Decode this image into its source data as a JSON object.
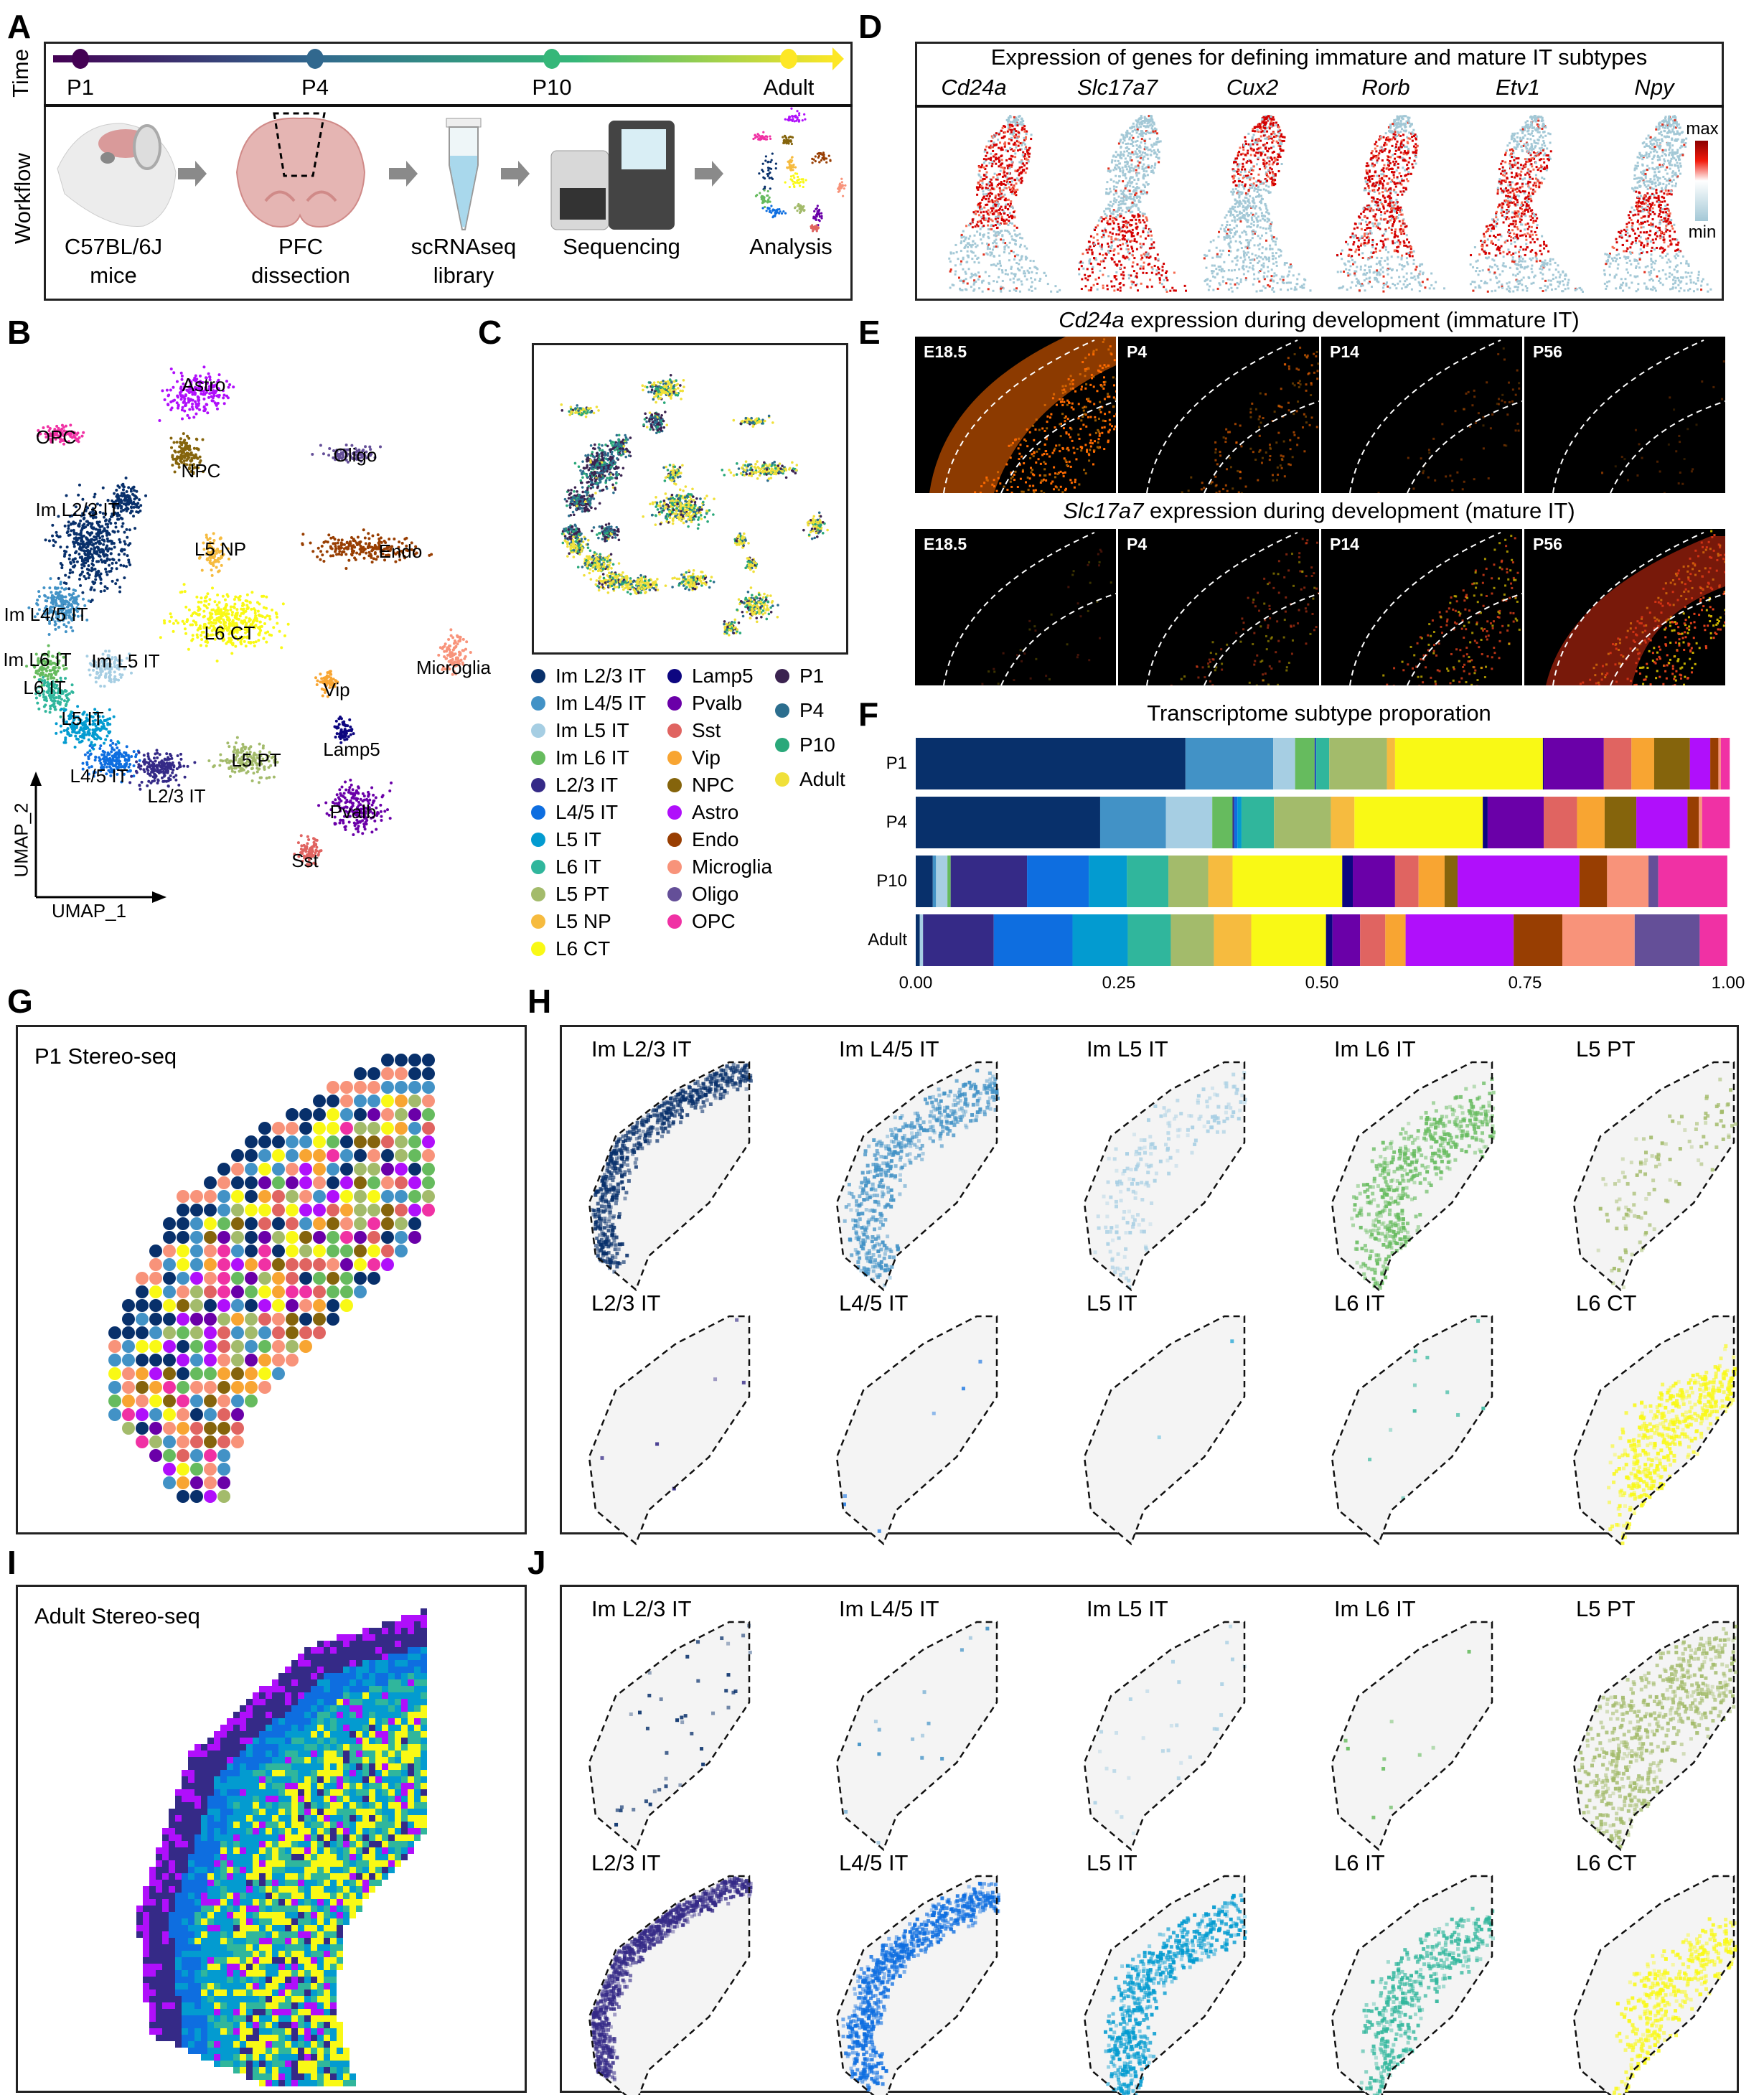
{
  "panel_labels": {
    "A": "A",
    "B": "B",
    "C": "C",
    "D": "D",
    "E": "E",
    "F": "F",
    "G": "G",
    "H": "H",
    "I": "I",
    "J": "J"
  },
  "panel_a": {
    "time_label": "Time",
    "workflow_label": "Workflow",
    "timepoints": [
      "P1",
      "P4",
      "P10",
      "Adult"
    ],
    "timeline_colors": [
      "#440154",
      "#31688e",
      "#35b779",
      "#fde725"
    ],
    "steps": [
      {
        "line1": "C57BL/6J",
        "line2": "mice",
        "icon": "mouse-icon"
      },
      {
        "line1": "PFC",
        "line2": "dissection",
        "icon": "brain-section-icon"
      },
      {
        "line1": "scRNAseq",
        "line2": "library",
        "icon": "tube-icon"
      },
      {
        "line1": "Sequencing",
        "line2": "",
        "icon": "sequencer-icon"
      },
      {
        "line1": "Analysis",
        "line2": "",
        "icon": "umap-icon"
      }
    ]
  },
  "panel_b": {
    "cluster_labels": [
      "Astro",
      "OPC",
      "NPC",
      "Oligo",
      "Im L2/3 IT",
      "L5 NP",
      "Endo",
      "Im L4/5 IT",
      "L6 CT",
      "Microglia",
      "Im L6 IT",
      "Im L5 IT",
      "L6 IT",
      "Vip",
      "L5 IT",
      "Lamp5",
      "L5 PT",
      "L4/5 IT",
      "L2/3 IT",
      "Pvalb",
      "Sst"
    ],
    "x_axis": "UMAP_1",
    "y_axis": "UMAP_2"
  },
  "cell_types": [
    {
      "name": "Im L2/3 IT",
      "color": "#08306b"
    },
    {
      "name": "Im L4/5 IT",
      "color": "#4292c6"
    },
    {
      "name": "Im L5 IT",
      "color": "#a6cee3"
    },
    {
      "name": "Im L6 IT",
      "color": "#66bb5e"
    },
    {
      "name": "L2/3 IT",
      "color": "#352a87"
    },
    {
      "name": "L4/5 IT",
      "color": "#0e6ee0"
    },
    {
      "name": "L5 IT",
      "color": "#039bd0"
    },
    {
      "name": "L6 IT",
      "color": "#30b69c"
    },
    {
      "name": "L5 PT",
      "color": "#a3bb6b"
    },
    {
      "name": "L5 NP",
      "color": "#f6bb3f"
    },
    {
      "name": "L6 CT",
      "color": "#f9f915"
    },
    {
      "name": "Lamp5",
      "color": "#0d0680"
    },
    {
      "name": "Pvalb",
      "color": "#6a00a8"
    },
    {
      "name": "Sst",
      "color": "#e06461"
    },
    {
      "name": "Vip",
      "color": "#f8a532"
    },
    {
      "name": "NPC",
      "color": "#85640c"
    },
    {
      "name": "Astro",
      "color": "#b00ffb"
    },
    {
      "name": "Endo",
      "color": "#983e02"
    },
    {
      "name": "Microglia",
      "color": "#f8937a"
    },
    {
      "name": "Oligo",
      "color": "#644f98"
    },
    {
      "name": "OPC",
      "color": "#f031a4"
    }
  ],
  "time_legend": [
    {
      "name": "P1",
      "color": "#3b2350"
    },
    {
      "name": "P4",
      "color": "#2c6e8e"
    },
    {
      "name": "P10",
      "color": "#2aa87a"
    },
    {
      "name": "Adult",
      "color": "#f0e03a"
    }
  ],
  "panel_d": {
    "title": "Expression of genes for defining immature and mature IT subtypes",
    "genes": [
      "Cd24a",
      "Slc17a7",
      "Cux2",
      "Rorb",
      "Etv1",
      "Npy"
    ],
    "scale_max": "max",
    "scale_min": "min",
    "scale_colors": [
      "#a3c8d6",
      "#ffffff",
      "#f21a0c",
      "#8b0000"
    ]
  },
  "panel_e": {
    "row1_gene": "Cd24a",
    "row1_suffix": " expression during development (immature IT)",
    "row2_gene": "Slc17a7",
    "row2_suffix": " expression during development (mature IT)",
    "stages": [
      "E18.5",
      "P4",
      "P14",
      "P56"
    ]
  },
  "chart_data": {
    "type": "bar",
    "orientation": "horizontal-stacked",
    "title": "Transcriptome subtype proporation",
    "categories": [
      "P1",
      "P4",
      "P10",
      "Adult"
    ],
    "xlim": [
      0,
      1
    ],
    "xticks": [
      "0.00",
      "0.25",
      "0.50",
      "0.75",
      "1.00"
    ],
    "grid": false,
    "series": [
      {
        "name": "Im L2/3 IT",
        "values": [
          0.332,
          0.227,
          0.021,
          0.005
        ]
      },
      {
        "name": "Im L4/5 IT",
        "values": [
          0.108,
          0.081,
          0.004,
          0.0
        ]
      },
      {
        "name": "Im L5 IT",
        "values": [
          0.027,
          0.057,
          0.014,
          0.004
        ]
      },
      {
        "name": "Im L6 IT",
        "values": [
          0.024,
          0.025,
          0.004,
          0.0
        ]
      },
      {
        "name": "L2/3 IT",
        "values": [
          0.001,
          0.002,
          0.094,
          0.087
        ]
      },
      {
        "name": "L4/5 IT",
        "values": [
          0.001,
          0.004,
          0.076,
          0.097
        ]
      },
      {
        "name": "L5 IT",
        "values": [
          0.0,
          0.005,
          0.047,
          0.068
        ]
      },
      {
        "name": "L6 IT",
        "values": [
          0.016,
          0.04,
          0.051,
          0.053
        ]
      },
      {
        "name": "L5 PT",
        "values": [
          0.071,
          0.07,
          0.049,
          0.053
        ]
      },
      {
        "name": "L5 NP",
        "values": [
          0.01,
          0.029,
          0.03,
          0.046
        ]
      },
      {
        "name": "L6 CT",
        "values": [
          0.182,
          0.158,
          0.135,
          0.092
        ]
      },
      {
        "name": "Lamp5",
        "values": [
          0.001,
          0.006,
          0.013,
          0.008
        ]
      },
      {
        "name": "Pvalb",
        "values": [
          0.074,
          0.069,
          0.052,
          0.034
        ]
      },
      {
        "name": "Sst",
        "values": [
          0.034,
          0.041,
          0.029,
          0.031
        ]
      },
      {
        "name": "Vip",
        "values": [
          0.028,
          0.034,
          0.032,
          0.025
        ]
      },
      {
        "name": "NPC",
        "values": [
          0.044,
          0.039,
          0.016,
          0.0
        ]
      },
      {
        "name": "Astro",
        "values": [
          0.025,
          0.063,
          0.15,
          0.133
        ]
      },
      {
        "name": "Endo",
        "values": [
          0.01,
          0.014,
          0.034,
          0.06
        ]
      },
      {
        "name": "Microglia",
        "values": [
          0.003,
          0.004,
          0.051,
          0.089
        ]
      },
      {
        "name": "Oligo",
        "values": [
          0.0,
          0.0,
          0.012,
          0.08
        ]
      },
      {
        "name": "OPC",
        "values": [
          0.011,
          0.034,
          0.085,
          0.034
        ]
      }
    ]
  },
  "panel_g": {
    "title": "P1 Stereo-seq"
  },
  "panel_i": {
    "title": "Adult Stereo-seq"
  },
  "spatial_subtypes": [
    "Im L2/3 IT",
    "Im L4/5 IT",
    "Im L5 IT",
    "Im L6 IT",
    "L5 PT",
    "L2/3 IT",
    "L4/5 IT",
    "L5 IT",
    "L6 IT",
    "L6 CT"
  ]
}
